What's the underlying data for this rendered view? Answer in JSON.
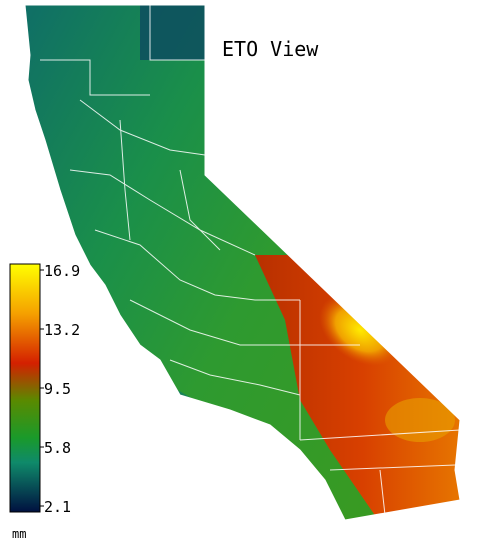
{
  "title": "ETO View",
  "legend": {
    "unit": "mm",
    "ticks": [
      16.9,
      13.2,
      9.5,
      5.8,
      2.1
    ]
  }
}
